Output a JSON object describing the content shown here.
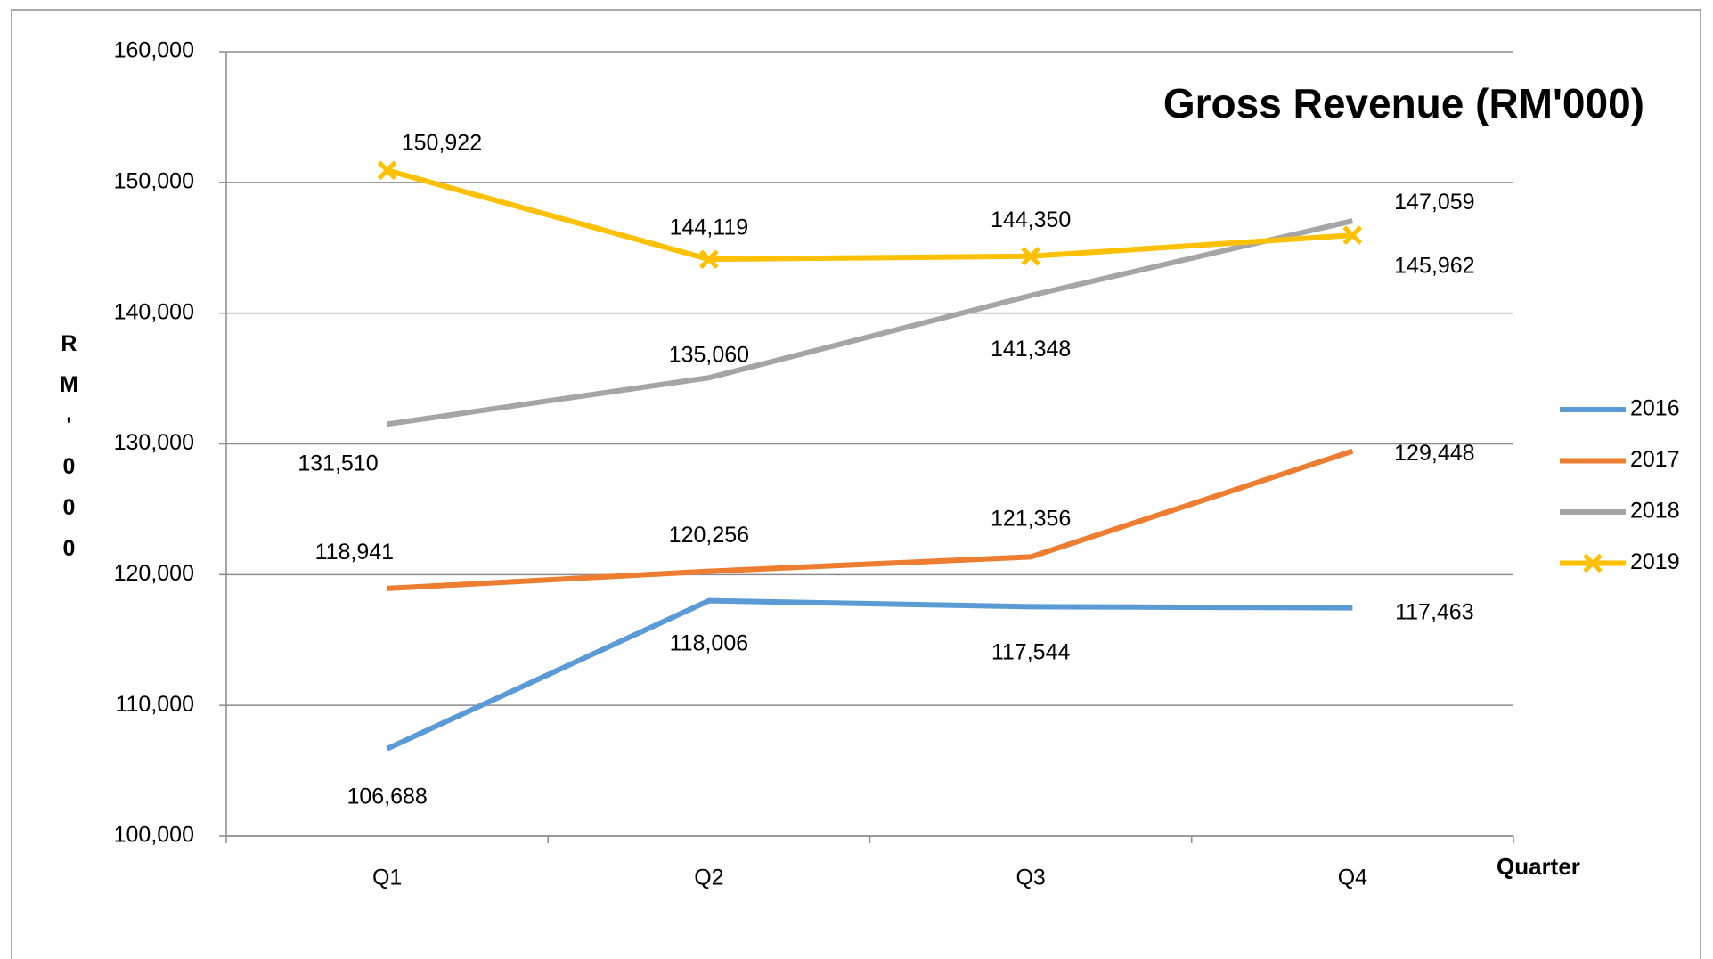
{
  "chart_data": {
    "type": "line",
    "title": "Gross Revenue (RM'000)",
    "x_label": "Quarter",
    "y_label": "RM'000",
    "categories": [
      "Q1",
      "Q2",
      "Q3",
      "Q4"
    ],
    "series": [
      {
        "name": "2016",
        "color": "#5b9bd5",
        "values": [
          106688,
          118006,
          117544,
          117463
        ],
        "value_labels": [
          "106,688",
          "118,006",
          "117,544",
          "117,463"
        ]
      },
      {
        "name": "2017",
        "color": "#ed7d31",
        "values": [
          118941,
          120256,
          121356,
          129448
        ],
        "value_labels": [
          "118,941",
          "120,256",
          "121,356",
          "129,448"
        ]
      },
      {
        "name": "2018",
        "color": "#a5a5a5",
        "values": [
          131510,
          135060,
          141348,
          147059
        ],
        "value_labels": [
          "131,510",
          "135,060",
          "141,348",
          "147,059"
        ]
      },
      {
        "name": "2019",
        "color": "#ffc000",
        "marker": "x",
        "values": [
          150922,
          144119,
          144350,
          145962
        ],
        "value_labels": [
          "150,922",
          "144,119",
          "144,350",
          "145,962"
        ]
      }
    ],
    "ylim": [
      100000,
      160000
    ],
    "yticks": [
      {
        "value": 100000,
        "label": "100,000"
      },
      {
        "value": 110000,
        "label": "110,000"
      },
      {
        "value": 120000,
        "label": "120,000"
      },
      {
        "value": 130000,
        "label": "130,000"
      },
      {
        "value": 140000,
        "label": "140,000"
      },
      {
        "value": 150000,
        "label": "150,000"
      },
      {
        "value": 160000,
        "label": "160,000"
      }
    ],
    "grid": true,
    "legend": "right"
  }
}
